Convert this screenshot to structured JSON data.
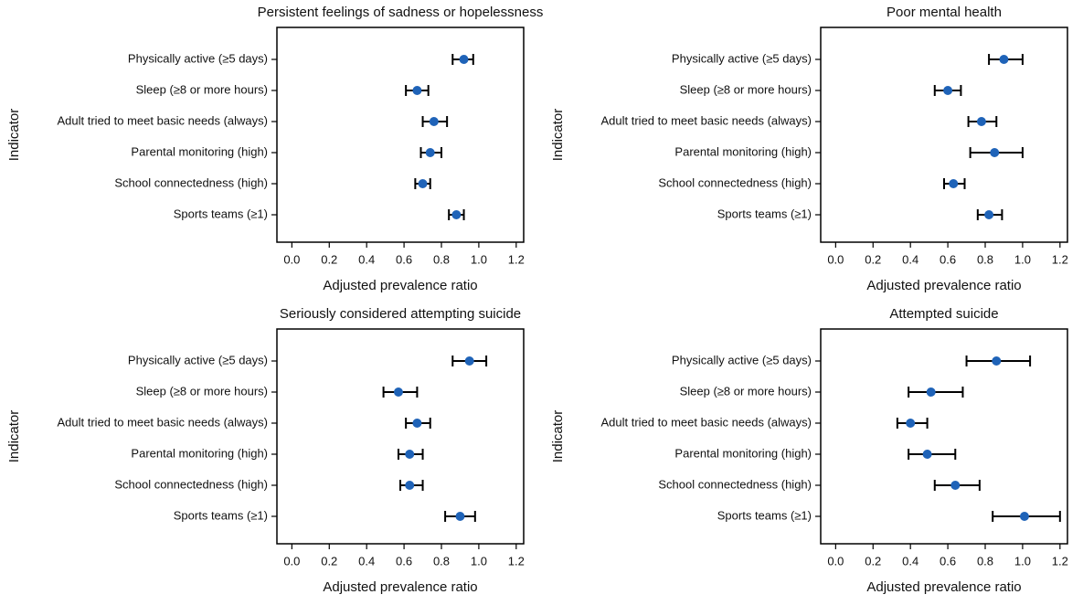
{
  "chart_data": [
    {
      "type": "errorbar",
      "title": "Persistent feelings of sadness or hopelessness",
      "x_label": "Adjusted prevalence ratio",
      "y_label": "Indicator",
      "categories": [
        "Physically active (≥5 days)",
        "Sleep (≥8 or more hours)",
        "Adult tried to meet basic needs (always)",
        "Parental monitoring (high)",
        "School connectedness (high)",
        "Sports teams (≥1)"
      ],
      "values": [
        0.92,
        0.67,
        0.76,
        0.74,
        0.7,
        0.88
      ],
      "ci_lower": [
        0.86,
        0.61,
        0.7,
        0.69,
        0.66,
        0.84
      ],
      "ci_upper": [
        0.97,
        0.73,
        0.83,
        0.8,
        0.74,
        0.92
      ],
      "color": "#1f63b8",
      "xlim": [
        -0.08,
        1.24
      ],
      "xticks": [
        {
          "value": 0,
          "label": "0.0"
        },
        0.2,
        0.4,
        0.6,
        0.8,
        {
          "value": 1,
          "label": "1.0"
        },
        1.2
      ]
    },
    {
      "type": "errorbar",
      "title": "Poor mental health",
      "x_label": "Adjusted prevalence ratio",
      "y_label": "Indicator",
      "categories": [
        "Physically active (≥5 days)",
        "Sleep (≥8 or more hours)",
        "Adult tried to meet basic needs (always)",
        "Parental monitoring (high)",
        "School connectedness (high)",
        "Sports teams (≥1)"
      ],
      "values": [
        0.9,
        0.6,
        0.78,
        0.85,
        0.63,
        0.82
      ],
      "ci_lower": [
        0.82,
        0.53,
        0.71,
        0.72,
        0.58,
        0.76
      ],
      "ci_upper": [
        1.0,
        0.67,
        0.86,
        1.0,
        0.69,
        0.89
      ],
      "color": "#1f63b8",
      "xlim": [
        -0.08,
        1.24
      ],
      "xticks": [
        {
          "value": 0,
          "label": "0.0"
        },
        0.2,
        0.4,
        0.6,
        0.8,
        {
          "value": 1,
          "label": "1.0"
        },
        1.2
      ]
    },
    {
      "type": "errorbar",
      "title": "Seriously considered attempting suicide",
      "x_label": "Adjusted prevalence ratio",
      "y_label": "Indicator",
      "categories": [
        "Physically active (≥5 days)",
        "Sleep (≥8 or more hours)",
        "Adult tried to meet basic needs (always)",
        "Parental monitoring (high)",
        "School connectedness (high)",
        "Sports teams (≥1)"
      ],
      "values": [
        0.95,
        0.57,
        0.67,
        0.63,
        0.63,
        0.9
      ],
      "ci_lower": [
        0.86,
        0.49,
        0.61,
        0.57,
        0.58,
        0.82
      ],
      "ci_upper": [
        1.04,
        0.67,
        0.74,
        0.7,
        0.7,
        0.98
      ],
      "color": "#1f63b8",
      "xlim": [
        -0.08,
        1.24
      ],
      "xticks": [
        {
          "value": 0,
          "label": "0.0"
        },
        0.2,
        0.4,
        0.6,
        0.8,
        {
          "value": 1,
          "label": "1.0"
        },
        1.2
      ]
    },
    {
      "type": "errorbar",
      "title": "Attempted suicide",
      "x_label": "Adjusted prevalence ratio",
      "y_label": "Indicator",
      "categories": [
        "Physically active (≥5 days)",
        "Sleep (≥8 or more hours)",
        "Adult tried to meet basic needs (always)",
        "Parental monitoring (high)",
        "School connectedness (high)",
        "Sports teams (≥1)"
      ],
      "values": [
        0.86,
        0.51,
        0.4,
        0.49,
        0.64,
        1.01
      ],
      "ci_lower": [
        0.7,
        0.39,
        0.33,
        0.39,
        0.53,
        0.84
      ],
      "ci_upper": [
        1.04,
        0.68,
        0.49,
        0.64,
        0.77,
        1.2
      ],
      "color": "#1f63b8",
      "xlim": [
        -0.08,
        1.24
      ],
      "xticks": [
        {
          "value": 0,
          "label": "0.0"
        },
        0.2,
        0.4,
        0.6,
        0.8,
        {
          "value": 1,
          "label": "1.0"
        },
        1.2
      ]
    }
  ]
}
